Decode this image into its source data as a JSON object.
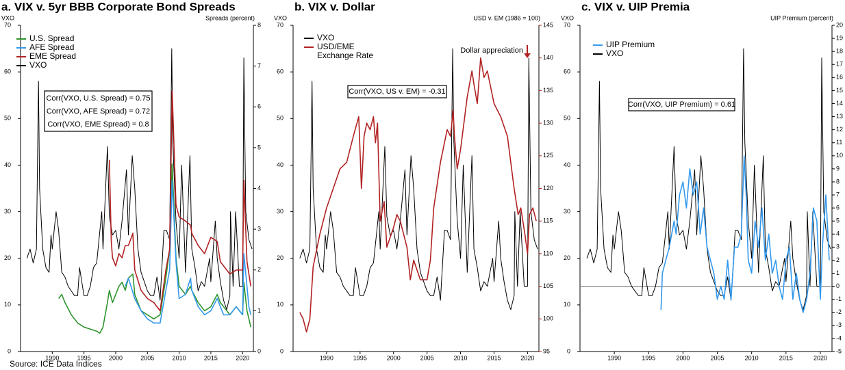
{
  "source": "Source: ICE Data Indices",
  "chart_data": [
    {
      "type": "line",
      "title": "a. VIX v. 5yr BBB Corporate Bond Spreads",
      "y_label": "VXO",
      "y2_label": "Spreads (percent)",
      "xlim": [
        1985,
        2021.7
      ],
      "xticks": [
        1990,
        1995,
        2000,
        2005,
        2010,
        2015,
        2020
      ],
      "ylim": [
        0,
        70
      ],
      "yticks": [
        0,
        10,
        20,
        30,
        40,
        50,
        60,
        70
      ],
      "y2lim": [
        0,
        8
      ],
      "y2ticks": [
        0,
        1,
        2,
        3,
        4,
        5,
        6,
        7,
        8
      ],
      "annotations": [
        "Corr(VXO, U.S. Spread) = 0.75",
        "Corr(VXO, AFE Spread) = 0.72",
        "Corr(VXO, EME Spread) = 0.8"
      ],
      "series": [
        {
          "name": "U.S. Spread",
          "color": "#2e952e",
          "axis": "y2",
          "x": [
            1991,
            1991.5,
            1992,
            1993,
            1994,
            1995,
            1996,
            1997,
            1997.5,
            1998,
            1998.7,
            1999,
            1999.5,
            2000,
            2000.5,
            2001,
            2001.5,
            2002,
            2002.7,
            2003,
            2004,
            2005,
            2006,
            2007,
            2007.9,
            2008.5,
            2008.9,
            2009.5,
            2010,
            2011,
            2011.8,
            2012,
            2013,
            2014,
            2015,
            2016,
            2016.5,
            2017,
            2018,
            2019,
            2020,
            2020.2,
            2020.7,
            2021.3
          ],
          "values": [
            1.3,
            1.4,
            1.2,
            0.9,
            0.7,
            0.6,
            0.55,
            0.5,
            0.45,
            0.6,
            1.2,
            1.5,
            1.2,
            1.4,
            1.6,
            1.7,
            1.5,
            1.8,
            1.9,
            1.4,
            1.0,
            0.9,
            0.8,
            0.9,
            1.8,
            2.5,
            4.6,
            2.3,
            1.6,
            1.4,
            1.6,
            1.5,
            1.2,
            1.0,
            1.1,
            1.4,
            1.2,
            1.1,
            0.9,
            1.1,
            0.9,
            1.7,
            1.0,
            0.6
          ]
        },
        {
          "name": "AFE Spread",
          "color": "#3399ee",
          "axis": "y2",
          "x": [
            2001.5,
            2002,
            2003,
            2004,
            2005,
            2006,
            2007,
            2007.9,
            2008.5,
            2008.9,
            2009.5,
            2010,
            2011,
            2011.8,
            2012,
            2013,
            2014,
            2015,
            2016,
            2017,
            2018,
            2019,
            2020,
            2020.2,
            2021,
            2021.3
          ],
          "values": [
            1.6,
            1.8,
            1.3,
            1.0,
            0.8,
            0.7,
            0.7,
            1.5,
            2.0,
            4.2,
            2.2,
            1.3,
            1.4,
            1.8,
            1.5,
            1.1,
            0.9,
            1.0,
            1.3,
            0.9,
            0.9,
            1.1,
            0.9,
            2.4,
            1.1,
            0.9
          ]
        },
        {
          "name": "EME Spread",
          "color": "#b22222",
          "axis": "y2",
          "x": [
            1999,
            1999.3,
            1999.5,
            2000,
            2000.5,
            2001,
            2001.5,
            2002,
            2002.7,
            2003,
            2004,
            2005,
            2006,
            2007,
            2007.9,
            2008.5,
            2008.9,
            2009.5,
            2010,
            2011,
            2011.8,
            2012,
            2013,
            2014,
            2015,
            2016,
            2016.5,
            2017,
            2018,
            2019,
            2020,
            2020.2,
            2020.7,
            2021.3
          ],
          "values": [
            4.7,
            2.7,
            2.3,
            2.1,
            2.4,
            2.3,
            2.6,
            2.6,
            2.9,
            2.0,
            1.5,
            1.3,
            1.2,
            1.0,
            2.0,
            2.5,
            6.4,
            3.6,
            3.3,
            3.2,
            3.1,
            2.9,
            2.6,
            2.4,
            2.8,
            2.7,
            2.2,
            2.1,
            1.9,
            2.0,
            2.0,
            4.2,
            2.2,
            1.6
          ]
        },
        {
          "name": "VXO",
          "color": "#000000",
          "x": [
            1986,
            1986.5,
            1987,
            1987.5,
            1987.83,
            1988,
            1988.5,
            1989,
            1989.5,
            1989.8,
            1990,
            1990.6,
            1991,
            1991.5,
            1992,
            1992.5,
            1993,
            1993.5,
            1994,
            1994.3,
            1995,
            1995.5,
            1996,
            1996.5,
            1997,
            1997.8,
            1998,
            1998.7,
            1999,
            1999.5,
            2000,
            2000.5,
            2001,
            2001.7,
            2002,
            2002.6,
            2003,
            2003.5,
            2004,
            2004.5,
            2005,
            2005.5,
            2006,
            2006.5,
            2007,
            2007.6,
            2008,
            2008.5,
            2008.83,
            2009,
            2009.5,
            2010,
            2010.4,
            2011,
            2011.7,
            2012,
            2012.5,
            2013,
            2013.5,
            2014,
            2014.8,
            2015,
            2015.7,
            2016,
            2016.5,
            2017,
            2017.5,
            2018,
            2018.1,
            2018.5,
            2018.9,
            2019.5,
            2020,
            2020.2,
            2020.5,
            2021,
            2021.5
          ],
          "values": [
            20,
            22,
            19,
            22,
            58,
            35,
            22,
            18,
            17,
            25,
            22,
            30,
            26,
            17,
            16,
            14,
            13,
            12,
            12,
            18,
            12,
            12,
            14,
            18,
            19,
            30,
            22,
            44,
            29,
            25,
            26,
            22,
            28,
            39,
            25,
            42,
            35,
            22,
            17,
            15,
            13,
            12,
            12,
            16,
            11,
            26,
            26,
            24,
            65,
            45,
            28,
            20,
            40,
            17,
            42,
            22,
            18,
            13,
            15,
            14,
            20,
            15,
            28,
            20,
            15,
            11,
            9,
            12,
            30,
            14,
            30,
            14,
            14,
            63,
            30,
            24,
            22
          ]
        }
      ]
    },
    {
      "type": "line",
      "title": "b. VIX v. Dollar",
      "y_label": "VXO",
      "y2_label": "USD v. EM (1986 = 100)",
      "y2_color": "#b22222",
      "xlim": [
        1985,
        2021.7
      ],
      "xticks": [
        1990,
        1995,
        2000,
        2005,
        2010,
        2015,
        2020
      ],
      "ylim": [
        0,
        70
      ],
      "yticks": [
        0,
        10,
        20,
        30,
        40,
        50,
        60,
        70
      ],
      "y2lim": [
        95,
        145
      ],
      "y2ticks": [
        95,
        100,
        105,
        110,
        115,
        120,
        125,
        130,
        135,
        140,
        145
      ],
      "annotations": [
        "Corr(VXO, US v. EM) = -0.31"
      ],
      "arrow_note": "Dollar appreciation",
      "series": [
        {
          "name": "VXO",
          "color": "#000000",
          "x": [
            1986,
            1986.5,
            1987,
            1987.5,
            1987.83,
            1988,
            1988.5,
            1989,
            1989.5,
            1989.8,
            1990,
            1990.6,
            1991,
            1991.5,
            1992,
            1992.5,
            1993,
            1993.5,
            1994,
            1994.3,
            1995,
            1995.5,
            1996,
            1996.5,
            1997,
            1997.8,
            1998,
            1998.7,
            1999,
            1999.5,
            2000,
            2000.5,
            2001,
            2001.7,
            2002,
            2002.6,
            2003,
            2003.5,
            2004,
            2004.5,
            2005,
            2005.5,
            2006,
            2006.5,
            2007,
            2007.6,
            2008,
            2008.5,
            2008.83,
            2009,
            2009.5,
            2010,
            2010.4,
            2011,
            2011.7,
            2012,
            2012.5,
            2013,
            2013.5,
            2014,
            2014.8,
            2015,
            2015.7,
            2016,
            2016.5,
            2017,
            2017.5,
            2018,
            2018.1,
            2018.5,
            2018.9,
            2019.5,
            2020,
            2020.2,
            2020.5,
            2021,
            2021.5
          ],
          "values": [
            20,
            22,
            19,
            22,
            58,
            35,
            22,
            18,
            17,
            25,
            22,
            30,
            26,
            17,
            16,
            14,
            13,
            12,
            12,
            18,
            12,
            12,
            14,
            18,
            19,
            30,
            22,
            44,
            29,
            25,
            26,
            22,
            28,
            39,
            25,
            42,
            35,
            22,
            17,
            15,
            13,
            12,
            12,
            16,
            11,
            26,
            26,
            24,
            65,
            45,
            28,
            20,
            40,
            17,
            42,
            22,
            18,
            13,
            15,
            14,
            20,
            15,
            28,
            20,
            15,
            11,
            9,
            12,
            30,
            14,
            30,
            14,
            14,
            63,
            30,
            24,
            22
          ]
        },
        {
          "name": "USD/EME Exchange Rate",
          "color": "#b22222",
          "axis": "y2",
          "x": [
            1986,
            1986.5,
            1987,
            1987.5,
            1988,
            1989,
            1990,
            1991,
            1992,
            1993,
            1994,
            1994.8,
            1995.2,
            1995.6,
            1996,
            1996.5,
            1997,
            1997.3,
            1997.6,
            1998,
            1998.6,
            1999,
            2000,
            2000.5,
            2001,
            2002,
            2002.5,
            2003,
            2004,
            2005,
            2005.5,
            2006,
            2007,
            2008,
            2008.5,
            2008.9,
            2009.1,
            2009.5,
            2010,
            2011,
            2011.7,
            2012,
            2012.5,
            2013,
            2013.5,
            2014,
            2015,
            2016,
            2017,
            2018,
            2018.6,
            2019,
            2019.6,
            2020,
            2020.3,
            2020.8,
            2021.3
          ],
          "values": [
            101,
            100,
            98,
            100,
            108,
            113,
            117,
            120,
            123,
            124,
            128,
            131,
            120,
            128,
            130,
            129,
            131,
            127,
            130,
            115,
            118,
            111,
            114,
            116,
            115,
            111,
            106,
            109,
            106,
            106,
            109,
            117,
            124,
            129,
            128,
            132,
            128,
            123,
            126,
            134,
            138,
            136,
            133,
            140,
            137,
            138,
            133,
            131,
            128,
            120,
            116,
            117,
            113,
            110,
            116,
            117,
            115
          ]
        }
      ]
    },
    {
      "type": "line",
      "title": "c. VIX v. UIP Premia",
      "y_label": "VXO",
      "y2_label": "UIP Premium (percent)",
      "xlim": [
        1985,
        2021.7
      ],
      "xticks": [
        1990,
        1995,
        2000,
        2005,
        2010,
        2015,
        2020
      ],
      "ylim": [
        0,
        70
      ],
      "yticks": [
        0,
        10,
        20,
        30,
        40,
        50,
        60,
        70
      ],
      "y2lim": [
        -5,
        20
      ],
      "y2ticks": [
        -5,
        -4,
        -3,
        -2,
        -1,
        0,
        1,
        2,
        3,
        4,
        5,
        6,
        7,
        8,
        9,
        10,
        11,
        12,
        13,
        14,
        15,
        16,
        17,
        18,
        19,
        20
      ],
      "reference_line": {
        "axis": "y2",
        "value": 0,
        "color": "#777777"
      },
      "annotations": [
        "Corr(VXO, UIP Premium) = 0.61"
      ],
      "series": [
        {
          "name": "UIP Premium",
          "color": "#3399ee",
          "axis": "y2",
          "x": [
            1996.8,
            1997,
            1997.5,
            1998,
            1998.7,
            1999,
            1999.5,
            2000,
            2000.5,
            2001,
            2001.5,
            2002,
            2002.5,
            2003,
            2003.5,
            2004,
            2004.5,
            2005,
            2005.5,
            2006,
            2006.5,
            2007,
            2007.5,
            2008,
            2008.5,
            2008.9,
            2009.2,
            2009.5,
            2010,
            2010.5,
            2011,
            2011.5,
            2012,
            2012.5,
            2013,
            2013.5,
            2014,
            2014.5,
            2015,
            2015.5,
            2016,
            2016.5,
            2017,
            2017.5,
            2018,
            2018.5,
            2019,
            2019.5,
            2020,
            2020.3,
            2020.8,
            2021.3
          ],
          "values": [
            -1.8,
            1,
            2,
            3,
            5,
            4,
            7,
            8,
            6,
            9,
            7,
            8,
            4,
            6,
            3,
            2,
            1,
            -1,
            0,
            -1,
            2,
            -1,
            3,
            3,
            4,
            10,
            7,
            2,
            1,
            5,
            3,
            6,
            2,
            4,
            1,
            2,
            0,
            -1,
            2,
            3,
            -1,
            1,
            -1,
            -2,
            -1,
            1,
            6,
            5,
            -1,
            3,
            7,
            2
          ]
        },
        {
          "name": "VXO",
          "color": "#000000",
          "x": [
            1986,
            1986.5,
            1987,
            1987.5,
            1987.83,
            1988,
            1988.5,
            1989,
            1989.5,
            1989.8,
            1990,
            1990.6,
            1991,
            1991.5,
            1992,
            1992.5,
            1993,
            1993.5,
            1994,
            1994.3,
            1995,
            1995.5,
            1996,
            1996.5,
            1997,
            1997.8,
            1998,
            1998.7,
            1999,
            1999.5,
            2000,
            2000.5,
            2001,
            2001.7,
            2002,
            2002.6,
            2003,
            2003.5,
            2004,
            2004.5,
            2005,
            2005.5,
            2006,
            2006.5,
            2007,
            2007.6,
            2008,
            2008.5,
            2008.83,
            2009,
            2009.5,
            2010,
            2010.4,
            2011,
            2011.7,
            2012,
            2012.5,
            2013,
            2013.5,
            2014,
            2014.8,
            2015,
            2015.7,
            2016,
            2016.5,
            2017,
            2017.5,
            2018,
            2018.1,
            2018.5,
            2018.9,
            2019.5,
            2020,
            2020.2,
            2020.5,
            2021,
            2021.5
          ],
          "values": [
            20,
            22,
            19,
            22,
            58,
            35,
            22,
            18,
            17,
            25,
            22,
            30,
            26,
            17,
            16,
            14,
            13,
            12,
            12,
            18,
            12,
            12,
            14,
            18,
            19,
            30,
            22,
            44,
            29,
            25,
            26,
            22,
            28,
            39,
            25,
            42,
            35,
            22,
            17,
            15,
            13,
            12,
            12,
            16,
            11,
            26,
            26,
            24,
            65,
            45,
            28,
            20,
            40,
            17,
            42,
            22,
            18,
            13,
            15,
            14,
            20,
            15,
            28,
            20,
            15,
            11,
            9,
            12,
            30,
            14,
            30,
            14,
            14,
            63,
            30,
            24,
            22
          ]
        }
      ]
    }
  ]
}
